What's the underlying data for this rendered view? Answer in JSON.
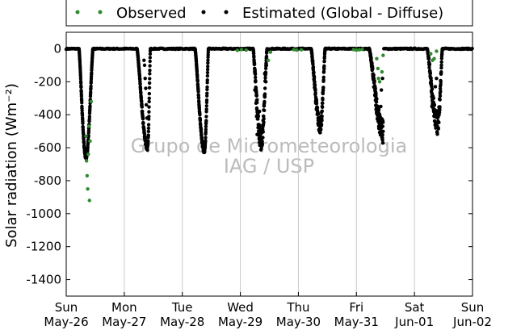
{
  "chart_data": {
    "type": "scatter",
    "ylabel": "Solar radiation (Wm⁻²)",
    "ylim": [
      -1500,
      100
    ],
    "yticks": [
      0,
      -200,
      -400,
      -600,
      -800,
      -1000,
      -1200,
      -1400
    ],
    "xticks": [
      {
        "day": 0,
        "weekday": "Sun",
        "date": "May-26"
      },
      {
        "day": 1,
        "weekday": "Mon",
        "date": "May-27"
      },
      {
        "day": 2,
        "weekday": "Tue",
        "date": "May-28"
      },
      {
        "day": 3,
        "weekday": "Wed",
        "date": "May-29"
      },
      {
        "day": 4,
        "weekday": "Thu",
        "date": "May-30"
      },
      {
        "day": 5,
        "weekday": "Fri",
        "date": "May-31"
      },
      {
        "day": 6,
        "weekday": "Sat",
        "date": "Jun-01"
      },
      {
        "day": 7,
        "weekday": "Sun",
        "date": "Jun-02"
      }
    ],
    "xlim": [
      0,
      7
    ],
    "grid": "vertical",
    "legend": "top",
    "watermark": [
      "Grupo de Micrometeorologia",
      "IAG / USP"
    ],
    "series": [
      {
        "name": "Observed",
        "color": "#2e8b2e",
        "points": [
          [
            0.35,
            -680
          ],
          [
            0.36,
            -770
          ],
          [
            0.37,
            -850
          ],
          [
            0.38,
            -640
          ],
          [
            0.4,
            -920
          ],
          [
            0.41,
            -560
          ],
          [
            0.43,
            -320
          ],
          [
            0.39,
            -470
          ],
          [
            0.34,
            -530
          ],
          [
            2.95,
            -10
          ],
          [
            3.02,
            -5
          ],
          [
            3.1,
            -8
          ],
          [
            3.48,
            -70
          ],
          [
            3.52,
            -20
          ],
          [
            3.92,
            -5
          ],
          [
            3.97,
            -8
          ],
          [
            4.05,
            -6
          ],
          [
            4.95,
            -5
          ],
          [
            5.0,
            -8
          ],
          [
            5.05,
            -6
          ],
          [
            5.1,
            -4
          ],
          [
            5.35,
            -60
          ],
          [
            5.37,
            -120
          ],
          [
            5.4,
            -200
          ],
          [
            5.44,
            -140
          ],
          [
            5.38,
            -180
          ],
          [
            5.46,
            -40
          ],
          [
            6.28,
            -30
          ],
          [
            6.31,
            -70
          ],
          [
            6.34,
            -60
          ],
          [
            6.38,
            -15
          ]
        ]
      },
      {
        "name": "Estimated (Global - Diffuse)",
        "color": "#000000",
        "days": [
          {
            "start": 0.22,
            "end": 0.46,
            "peak": 0.34,
            "min": -660,
            "noise": 20
          },
          {
            "start": 1.22,
            "end": 1.45,
            "peak": 1.4,
            "min": -600,
            "noise": 30
          },
          {
            "start": 2.22,
            "end": 2.45,
            "peak": 2.38,
            "min": -620,
            "noise": 25
          },
          {
            "start": 3.22,
            "end": 3.46,
            "peak": 3.36,
            "min": -560,
            "noise": 120
          },
          {
            "start": 4.22,
            "end": 4.46,
            "peak": 4.38,
            "min": -470,
            "noise": 90
          },
          {
            "start": 5.22,
            "end": 5.46,
            "peak": 5.46,
            "min": -500,
            "noise": 150
          },
          {
            "start": 6.22,
            "end": 6.48,
            "peak": 6.4,
            "min": -460,
            "noise": 120
          }
        ],
        "scattered": [
          [
            1.35,
            -100
          ],
          [
            1.36,
            -180
          ],
          [
            1.37,
            -240
          ],
          [
            1.38,
            -340
          ],
          [
            1.39,
            -420
          ],
          [
            1.34,
            -70
          ],
          [
            3.25,
            -250
          ],
          [
            3.26,
            -200
          ],
          [
            3.27,
            -330
          ],
          [
            3.28,
            -410
          ],
          [
            3.29,
            -520
          ],
          [
            3.31,
            -460
          ],
          [
            3.33,
            -380
          ],
          [
            3.42,
            -150
          ],
          [
            3.44,
            -200
          ],
          [
            3.45,
            -100
          ],
          [
            5.4,
            -480
          ],
          [
            5.42,
            -350
          ],
          [
            5.43,
            -250
          ],
          [
            5.41,
            -460
          ],
          [
            5.45,
            -180
          ],
          [
            6.3,
            -350
          ],
          [
            6.33,
            -300
          ],
          [
            6.36,
            -230
          ],
          [
            6.38,
            -180
          ]
        ]
      }
    ]
  }
}
